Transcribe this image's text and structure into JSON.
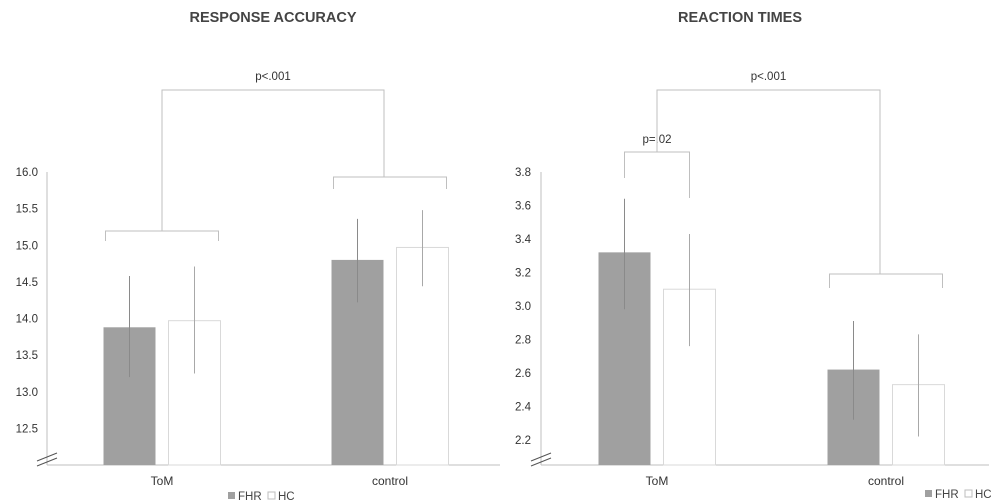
{
  "legend": [
    {
      "name": "FHR",
      "color": "#a0a0a0"
    },
    {
      "name": "HC",
      "color": "#ffffff"
    }
  ],
  "chart_data": [
    {
      "type": "bar",
      "title": "RESPONSE ACCURACY",
      "categories": [
        "ToM",
        "control"
      ],
      "series": [
        {
          "name": "FHR",
          "values": [
            13.88,
            14.8
          ],
          "err_low": [
            13.2,
            14.22
          ],
          "err_high": [
            14.58,
            15.36
          ]
        },
        {
          "name": "HC",
          "values": [
            13.97,
            14.97
          ],
          "err_low": [
            13.25,
            14.44
          ],
          "err_high": [
            14.71,
            15.48
          ]
        }
      ],
      "ylim": [
        12.0,
        16.0
      ],
      "yticks": [
        "16.0",
        "15.5",
        "15.0",
        "14.5",
        "14.0",
        "13.5",
        "13.0",
        "12.5"
      ],
      "axis_break": true,
      "annotations": [
        {
          "label": "p<.001",
          "type": "main-effect-bracket"
        }
      ],
      "legend_position": "bottom-center"
    },
    {
      "type": "bar",
      "title": "REACTION TIMES",
      "categories": [
        "ToM",
        "control"
      ],
      "series": [
        {
          "name": "FHR",
          "values": [
            3.32,
            2.62
          ],
          "err_low": [
            2.98,
            2.32
          ],
          "err_high": [
            3.64,
            2.91
          ]
        },
        {
          "name": "HC",
          "values": [
            3.1,
            2.53
          ],
          "err_low": [
            2.76,
            2.22
          ],
          "err_high": [
            3.43,
            2.83
          ]
        }
      ],
      "ylim": [
        2.05,
        3.8
      ],
      "yticks": [
        "3.8",
        "3.6",
        "3.4",
        "3.2",
        "3.0",
        "2.8",
        "2.6",
        "2.4",
        "2.2"
      ],
      "axis_break": true,
      "annotations": [
        {
          "label": "p=.02",
          "type": "group-bracket-ToM"
        },
        {
          "label": "p<.001",
          "type": "main-effect-bracket"
        }
      ],
      "legend_position": "bottom-right"
    }
  ]
}
